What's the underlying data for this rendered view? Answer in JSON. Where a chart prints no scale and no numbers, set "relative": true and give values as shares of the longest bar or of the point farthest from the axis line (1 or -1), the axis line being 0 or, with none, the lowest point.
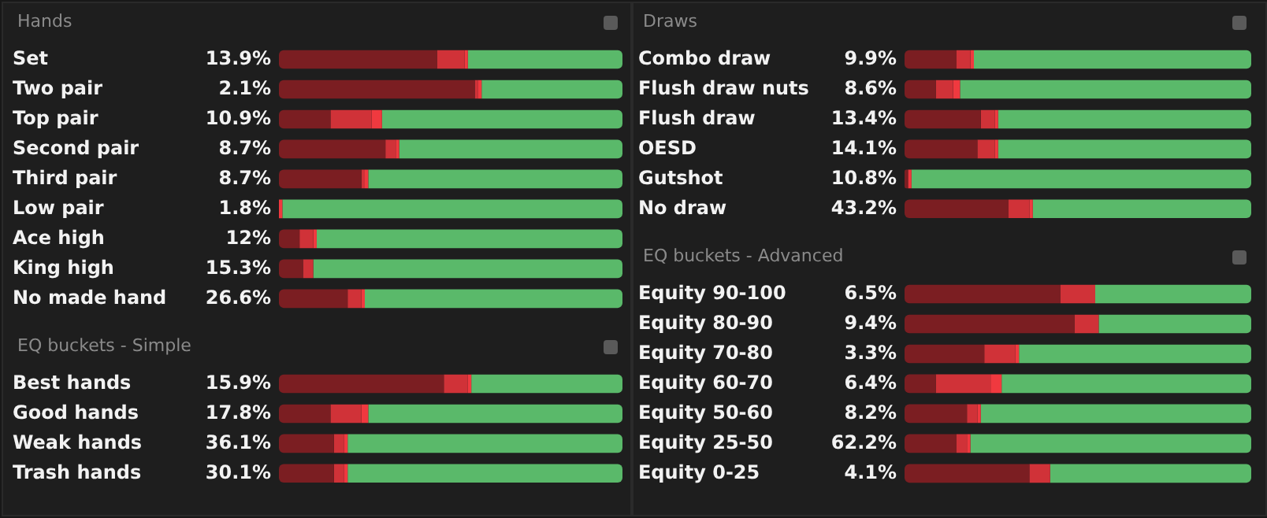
{
  "chart_data": [
    {
      "type": "bar",
      "title": "Hands",
      "orientation": "horizontal",
      "stacked": true,
      "relative": true,
      "legend": false,
      "tick_labels": "y",
      "categories": [
        "Set",
        "Two pair",
        "Top pair",
        "Second pair",
        "Third pair",
        "Low pair",
        "Ace high",
        "King high",
        "No made hand"
      ],
      "series": [
        {
          "color": "#7b1e22",
          "values": [
            0.46,
            0.57,
            0.15,
            0.31,
            0.24,
            0,
            0.06,
            0.07,
            0.2
          ]
        },
        {
          "color": "#d03238",
          "values": [
            0.08,
            0.01,
            0.12,
            0.03,
            0.01,
            0,
            0.04,
            0.03,
            0.04
          ]
        },
        {
          "color": "#f0393f",
          "values": [
            0.01,
            0.01,
            0.03,
            0.01,
            0.01,
            0.01,
            0.01,
            0,
            0.01
          ]
        },
        {
          "color": "#5ab96a",
          "values": [
            0.45,
            0.41,
            0.7,
            0.65,
            0.74,
            0.99,
            0.89,
            0.9,
            0.75
          ]
        }
      ],
      "annotations": [
        "13.9%",
        "2.1%",
        "10.9%",
        "8.7%",
        "8.7%",
        "1.8%",
        "12%",
        "15.3%",
        "26.6%"
      ]
    },
    {
      "type": "bar",
      "title": "EQ buckets - Simple",
      "orientation": "horizontal",
      "stacked": true,
      "relative": true,
      "legend": false,
      "tick_labels": "y",
      "categories": [
        "Best hands",
        "Good hands",
        "Weak hands",
        "Trash hands"
      ],
      "series": [
        {
          "color": "#7b1e22",
          "values": [
            0.48,
            0.15,
            0.16,
            0.16
          ]
        },
        {
          "color": "#d03238",
          "values": [
            0.07,
            0.09,
            0.03,
            0.03
          ]
        },
        {
          "color": "#f0393f",
          "values": [
            0.01,
            0.02,
            0.01,
            0.01
          ]
        },
        {
          "color": "#5ab96a",
          "values": [
            0.44,
            0.74,
            0.8,
            0.8
          ]
        }
      ],
      "annotations": [
        "15.9%",
        "17.8%",
        "36.1%",
        "30.1%"
      ]
    },
    {
      "type": "bar",
      "title": "Draws",
      "orientation": "horizontal",
      "stacked": true,
      "relative": true,
      "legend": false,
      "tick_labels": "y",
      "categories": [
        "Combo draw",
        "Flush draw nuts",
        "Flush draw",
        "OESD",
        "Gutshot",
        "No draw"
      ],
      "series": [
        {
          "color": "#7b1e22",
          "values": [
            0.15,
            0.09,
            0.22,
            0.21,
            0.01,
            0.3
          ]
        },
        {
          "color": "#d03238",
          "values": [
            0.04,
            0.05,
            0.04,
            0.05,
            0,
            0.06
          ]
        },
        {
          "color": "#f0393f",
          "values": [
            0.01,
            0.02,
            0.01,
            0.01,
            0.01,
            0.01
          ]
        },
        {
          "color": "#5ab96a",
          "values": [
            0.8,
            0.84,
            0.73,
            0.73,
            0.98,
            0.63
          ]
        }
      ],
      "annotations": [
        "9.9%",
        "8.6%",
        "13.4%",
        "14.1%",
        "10.8%",
        "43.2%"
      ]
    },
    {
      "type": "bar",
      "title": "EQ buckets - Advanced",
      "orientation": "horizontal",
      "stacked": true,
      "relative": true,
      "legend": false,
      "tick_labels": "y",
      "categories": [
        "Equity 90-100",
        "Equity 80-90",
        "Equity 70-80",
        "Equity 60-70",
        "Equity 50-60",
        "Equity 25-50",
        "Equity 0-25"
      ],
      "series": [
        {
          "color": "#7b1e22",
          "values": [
            0.45,
            0.49,
            0.23,
            0.09,
            0.18,
            0.15,
            0.36
          ]
        },
        {
          "color": "#d03238",
          "values": [
            0.1,
            0.07,
            0.09,
            0.16,
            0.03,
            0.03,
            0.06
          ]
        },
        {
          "color": "#f0393f",
          "values": [
            0,
            0,
            0.01,
            0.03,
            0.01,
            0.01,
            0
          ]
        },
        {
          "color": "#5ab96a",
          "values": [
            0.45,
            0.44,
            0.67,
            0.72,
            0.78,
            0.81,
            0.58
          ]
        }
      ],
      "annotations": [
        "6.5%",
        "9.4%",
        "3.3%",
        "6.4%",
        "8.2%",
        "62.2%",
        "4.1%"
      ]
    }
  ]
}
